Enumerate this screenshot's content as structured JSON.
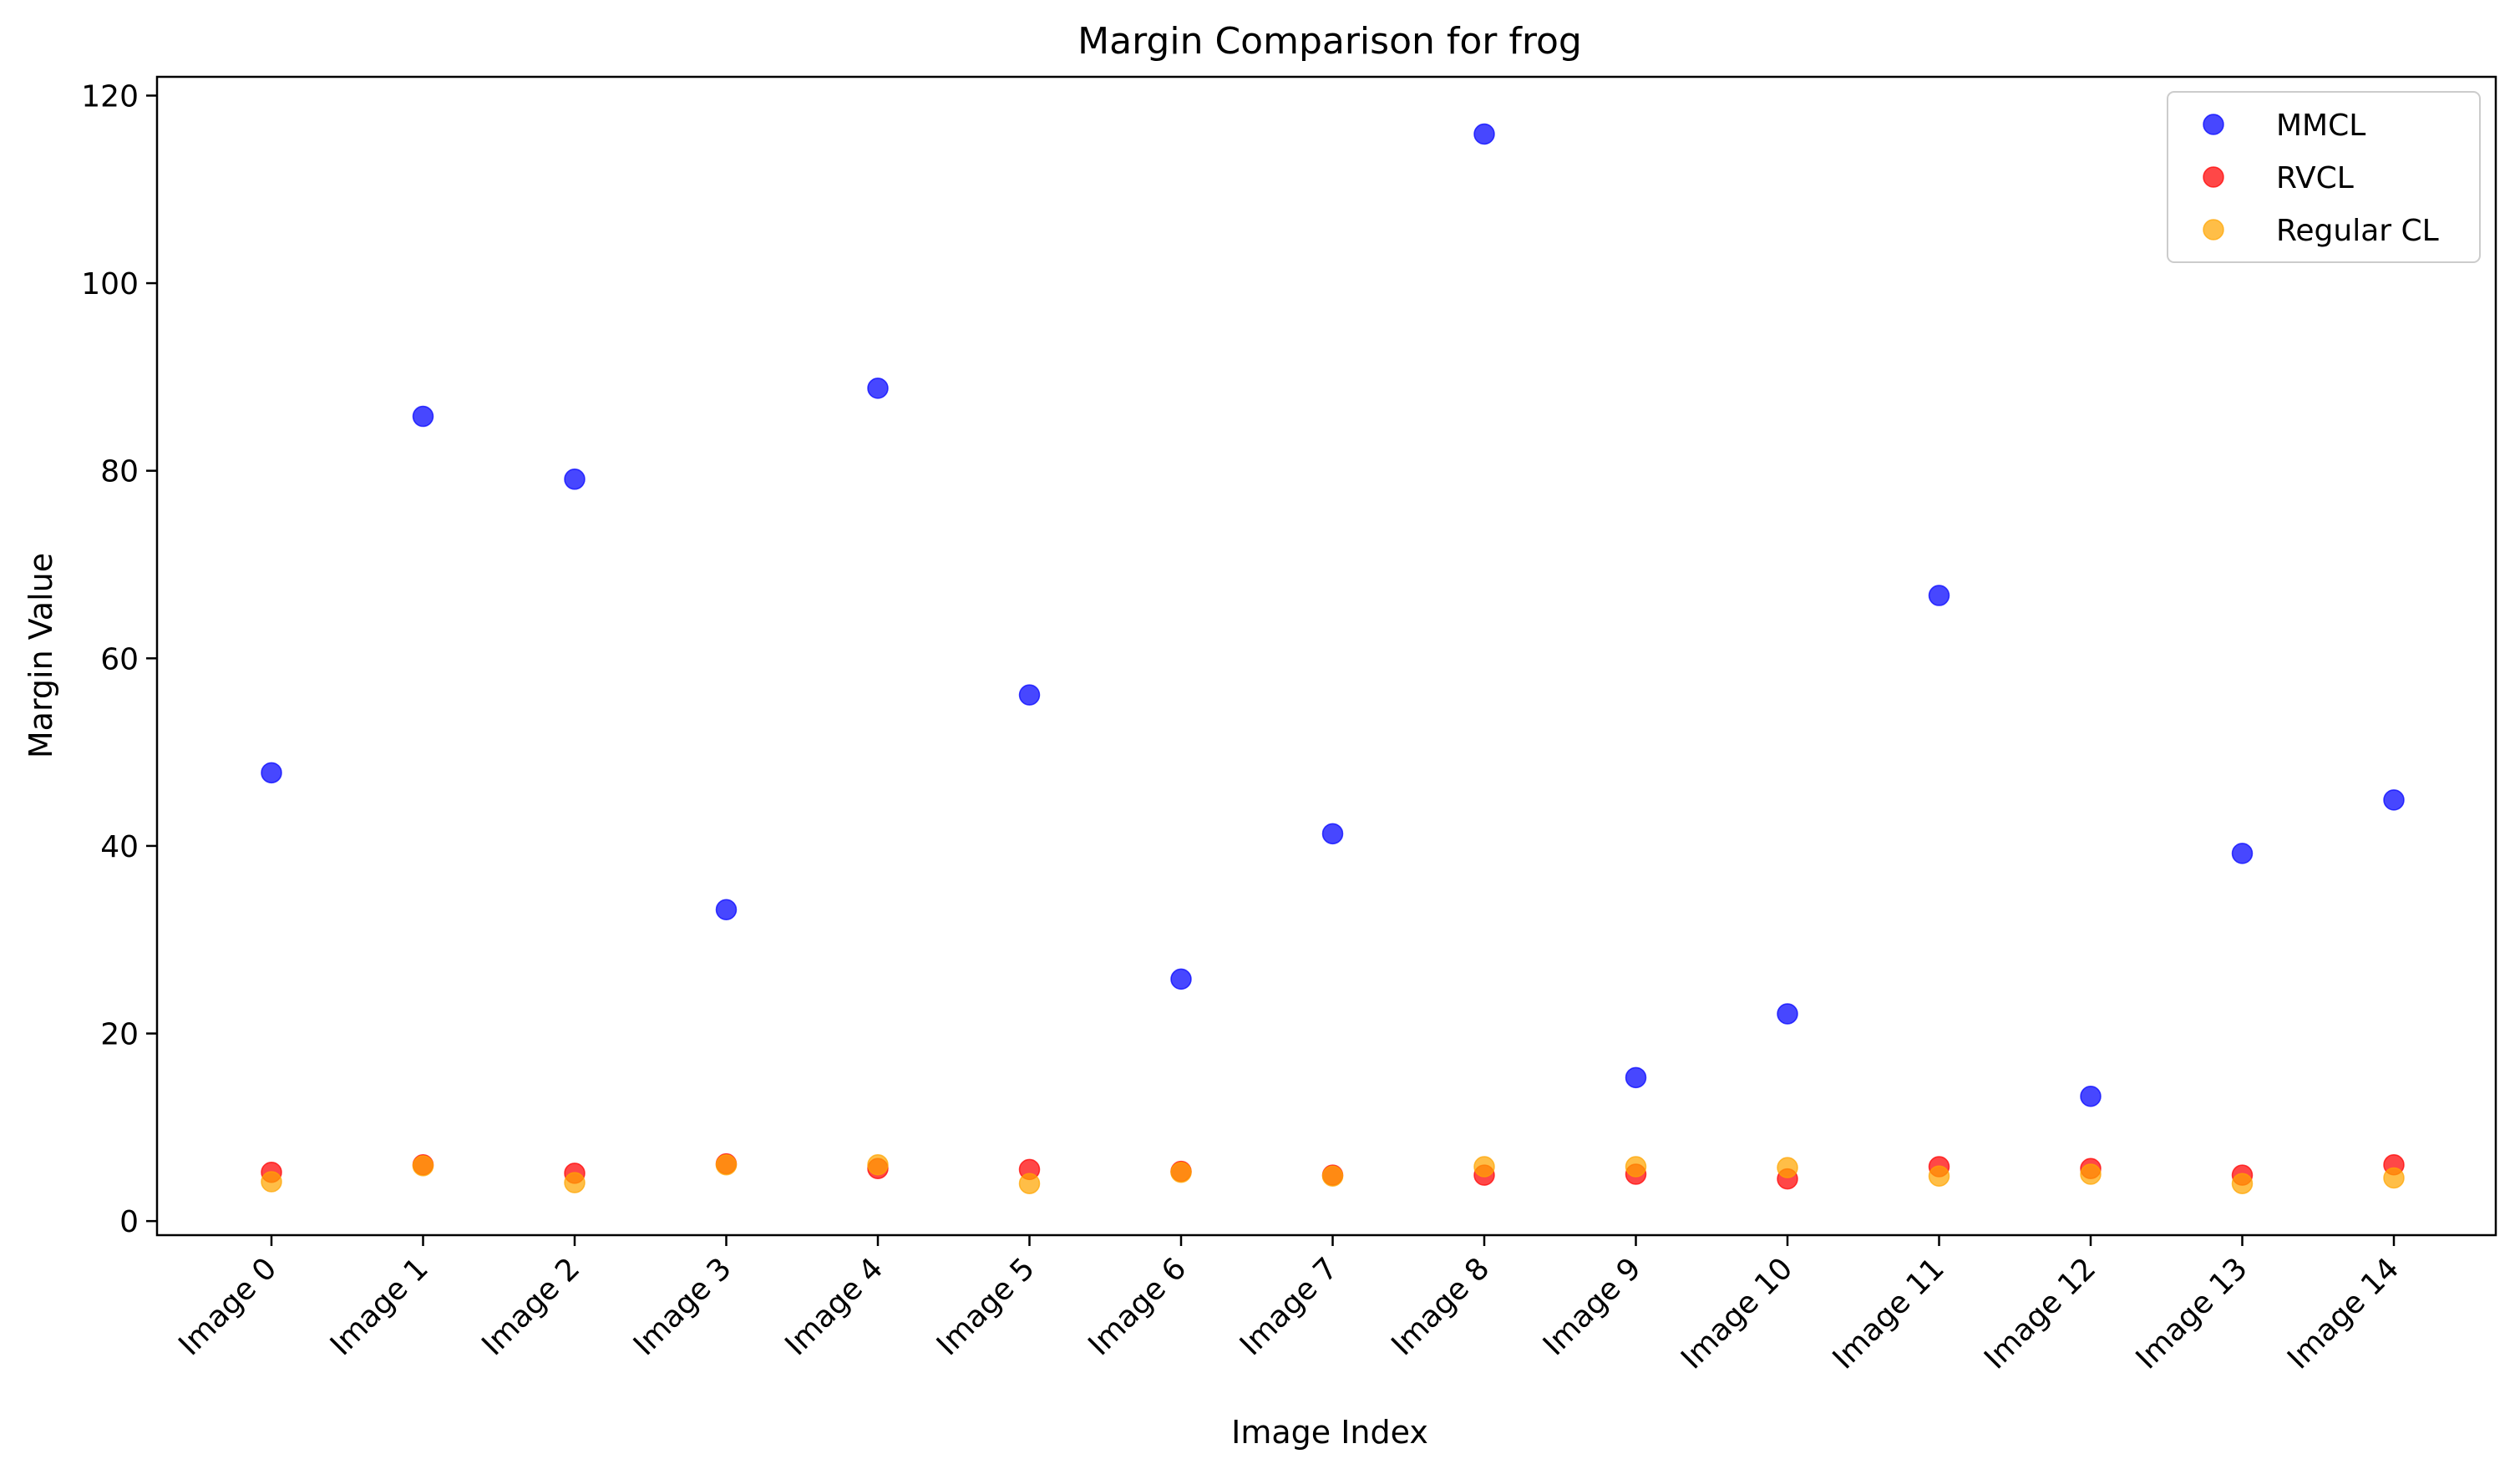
{
  "chart_data": {
    "type": "scatter",
    "title": "Margin Comparison for frog",
    "xlabel": "Image Index",
    "ylabel": "Margin Value",
    "categories": [
      "Image 0",
      "Image 1",
      "Image 2",
      "Image 3",
      "Image 4",
      "Image 5",
      "Image 6",
      "Image 7",
      "Image 8",
      "Image 9",
      "Image 10",
      "Image 11",
      "Image 12",
      "Image 13",
      "Image 14"
    ],
    "ylim": [
      -1.5,
      122
    ],
    "yticks": [
      0,
      20,
      40,
      60,
      80,
      100,
      120
    ],
    "grid": false,
    "legend_position": "top-right",
    "series": [
      {
        "name": "MMCL",
        "color": "#0000ff",
        "values": [
          47.8,
          85.8,
          79.1,
          33.2,
          88.8,
          56.1,
          25.8,
          41.3,
          115.9,
          15.3,
          22.1,
          66.7,
          13.3,
          39.2,
          44.9
        ]
      },
      {
        "name": "RVCL",
        "color": "#ff0000",
        "values": [
          5.2,
          6.0,
          5.1,
          6.1,
          5.6,
          5.5,
          5.3,
          4.9,
          4.9,
          5.0,
          4.5,
          5.8,
          5.6,
          4.9,
          6.0
        ]
      },
      {
        "name": "Regular CL",
        "color": "#ffa500",
        "values": [
          4.2,
          5.9,
          4.1,
          6.0,
          6.0,
          4.0,
          5.2,
          4.8,
          5.8,
          5.8,
          5.7,
          4.8,
          5.0,
          4.0,
          4.6
        ]
      }
    ]
  }
}
